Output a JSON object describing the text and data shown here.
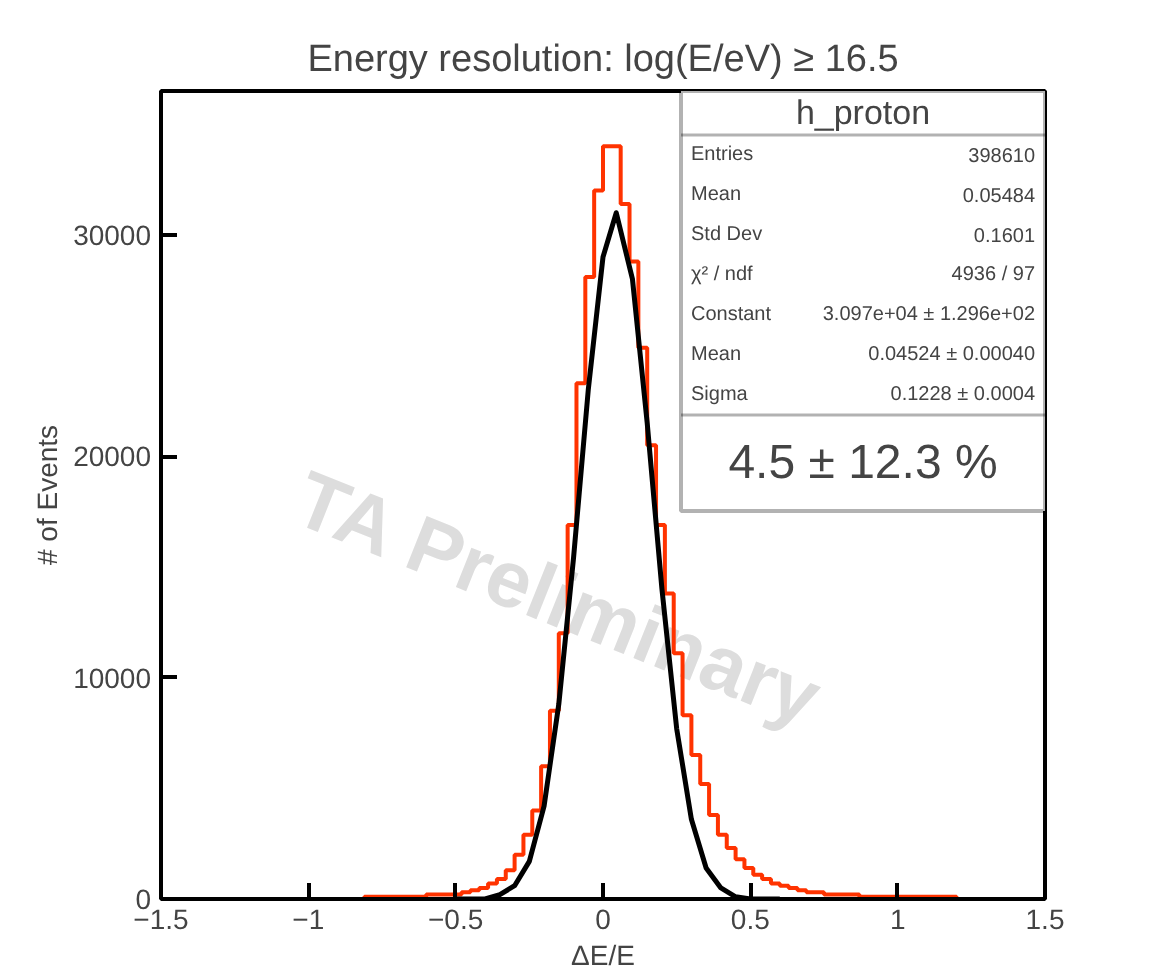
{
  "chart_data": {
    "type": "histogram",
    "title": "Energy resolution: log(E/eV) ≥ 16.5",
    "xlabel": "ΔE/E",
    "ylabel": "# of Events",
    "xlim": [
      -1.5,
      1.5
    ],
    "ylim": [
      0,
      36500
    ],
    "xticks": [
      {
        "value": -1.5,
        "label": "−1.5"
      },
      {
        "value": -1,
        "label": "−1"
      },
      {
        "value": -0.5,
        "label": "−0.5"
      },
      0,
      0.5,
      1,
      1.5
    ],
    "yticks": [
      0,
      10000,
      20000,
      30000
    ],
    "grid": false,
    "series": [
      {
        "color": "#ff3300",
        "bins": [
          -1.5,
          -1.47,
          -1.44,
          -1.41,
          -1.38,
          -1.35,
          -1.32,
          -1.29,
          -1.26,
          -1.23,
          -1.2,
          -1.17,
          -1.14,
          -1.11,
          -1.08,
          -1.05,
          -1.02,
          -0.99,
          -0.96,
          -0.93,
          -0.9,
          -0.87,
          -0.84,
          -0.81,
          -0.78,
          -0.75,
          -0.72,
          -0.69,
          -0.66,
          -0.63,
          -0.6,
          -0.57,
          -0.54,
          -0.51,
          -0.48,
          -0.45,
          -0.42,
          -0.39,
          -0.36,
          -0.33,
          -0.3,
          -0.27,
          -0.24,
          -0.21,
          -0.18,
          -0.15,
          -0.12,
          -0.09,
          -0.06,
          -0.03,
          0,
          0.03,
          0.06,
          0.09,
          0.12,
          0.15,
          0.18,
          0.21,
          0.24,
          0.27,
          0.3,
          0.33,
          0.36,
          0.39,
          0.42,
          0.45,
          0.48,
          0.51,
          0.54,
          0.57,
          0.6,
          0.63,
          0.66,
          0.69,
          0.72,
          0.75,
          0.78,
          0.81,
          0.84,
          0.87,
          0.9,
          0.93,
          0.96,
          0.99,
          1.02,
          1.05,
          1.08,
          1.11,
          1.14,
          1.17,
          1.2,
          1.23,
          1.26,
          1.29,
          1.32,
          1.35,
          1.38,
          1.41,
          1.44,
          1.47,
          1.5
        ],
        "values": [
          0,
          0,
          0,
          0,
          0,
          0,
          0,
          0,
          0,
          0,
          0,
          0,
          0,
          0,
          0,
          0,
          0,
          0,
          0,
          0,
          0,
          0,
          0,
          100,
          100,
          100,
          100,
          100,
          100,
          100,
          200,
          200,
          200,
          200,
          300,
          400,
          500,
          700,
          900,
          1300,
          2000,
          2900,
          4000,
          6000,
          8500,
          12000,
          16900,
          23300,
          28100,
          32000,
          34000,
          34000,
          31400,
          28800,
          24900,
          20500,
          16900,
          13800,
          11100,
          8300,
          6500,
          5200,
          3800,
          2900,
          2300,
          1800,
          1400,
          1100,
          900,
          700,
          600,
          500,
          400,
          300,
          300,
          200,
          200,
          200,
          200,
          100,
          100,
          100,
          100,
          100,
          100,
          100,
          100,
          100,
          100,
          100,
          0,
          0,
          0,
          0,
          0,
          0,
          0,
          0,
          0,
          0
        ]
      },
      {
        "type": "line",
        "color": "#000000",
        "line_style": "solid",
        "marker": "none",
        "x": [
          -0.5,
          -0.4,
          -0.35,
          -0.3,
          -0.25,
          -0.2,
          -0.15,
          -0.1,
          -0.05,
          0,
          0.045,
          0.1,
          0.15,
          0.2,
          0.25,
          0.3,
          0.35,
          0.4,
          0.45,
          0.5,
          0.6
        ],
        "values": [
          0,
          0,
          200,
          600,
          1700,
          4200,
          8800,
          15400,
          23000,
          29000,
          31000,
          28000,
          21500,
          14000,
          7700,
          3600,
          1400,
          500,
          100,
          0,
          0
        ]
      }
    ],
    "annotations": [
      "h_proton",
      "Entries",
      "398610",
      "Mean",
      "0.05484",
      "Std Dev",
      "0.1601",
      "χ² / ndf",
      "4936 / 97",
      "Constant",
      "3.097e+04 ± 1.296e+02",
      "Mean",
      "0.04524 ± 0.00040",
      "Sigma",
      "0.1228 ± 0.0004",
      "4.5 ± 12.3 %",
      "TA Preliminary"
    ]
  }
}
